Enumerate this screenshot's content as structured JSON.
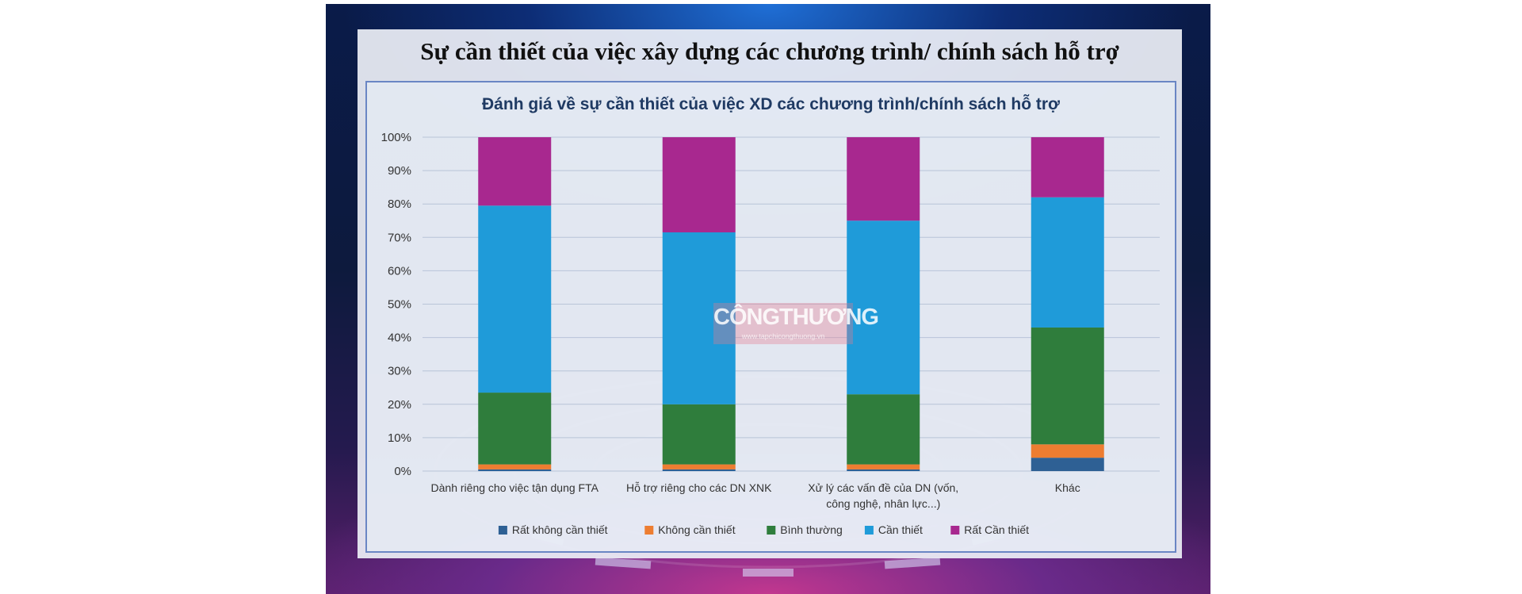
{
  "slide": {
    "title": "Sự cần thiết của việc xây dựng các chương trình/ chính sách hỗ trợ"
  },
  "watermark": {
    "text": "CÔNGTHƯƠNG",
    "subtext": "www.tapchicongthuong.vn"
  },
  "chart_data": {
    "type": "bar",
    "stacked": true,
    "title": "Đánh giá về sự cần thiết của việc XD các chương trình/chính sách hỗ trợ",
    "categories": [
      [
        "Dành riêng cho việc tận dụng FTA"
      ],
      [
        "Hỗ trợ riêng cho các DN XNK"
      ],
      [
        "Xử lý các vấn đề của DN (vốn,",
        "công nghệ, nhân lực...)"
      ],
      [
        "Khác"
      ]
    ],
    "series": [
      {
        "name": "Rất không cần thiết",
        "color": "#2e6094",
        "values": [
          0.5,
          0.5,
          0.5,
          4
        ]
      },
      {
        "name": "Không cần thiết",
        "color": "#ed7d31",
        "values": [
          1.5,
          1.5,
          1.5,
          4
        ]
      },
      {
        "name": "Bình thường",
        "color": "#2f7d3c",
        "values": [
          21.5,
          18,
          21,
          35
        ]
      },
      {
        "name": "Cần thiết",
        "color": "#1f9bd9",
        "values": [
          56,
          51.5,
          52,
          39
        ]
      },
      {
        "name": "Rất Cần thiết",
        "color": "#a8288f",
        "values": [
          20.5,
          28.5,
          25,
          18
        ]
      }
    ],
    "yticks": [
      "0%",
      "10%",
      "20%",
      "30%",
      "40%",
      "50%",
      "60%",
      "70%",
      "80%",
      "90%",
      "100%"
    ],
    "ylim": [
      0,
      100
    ],
    "grid": true,
    "legend_position": "bottom"
  }
}
